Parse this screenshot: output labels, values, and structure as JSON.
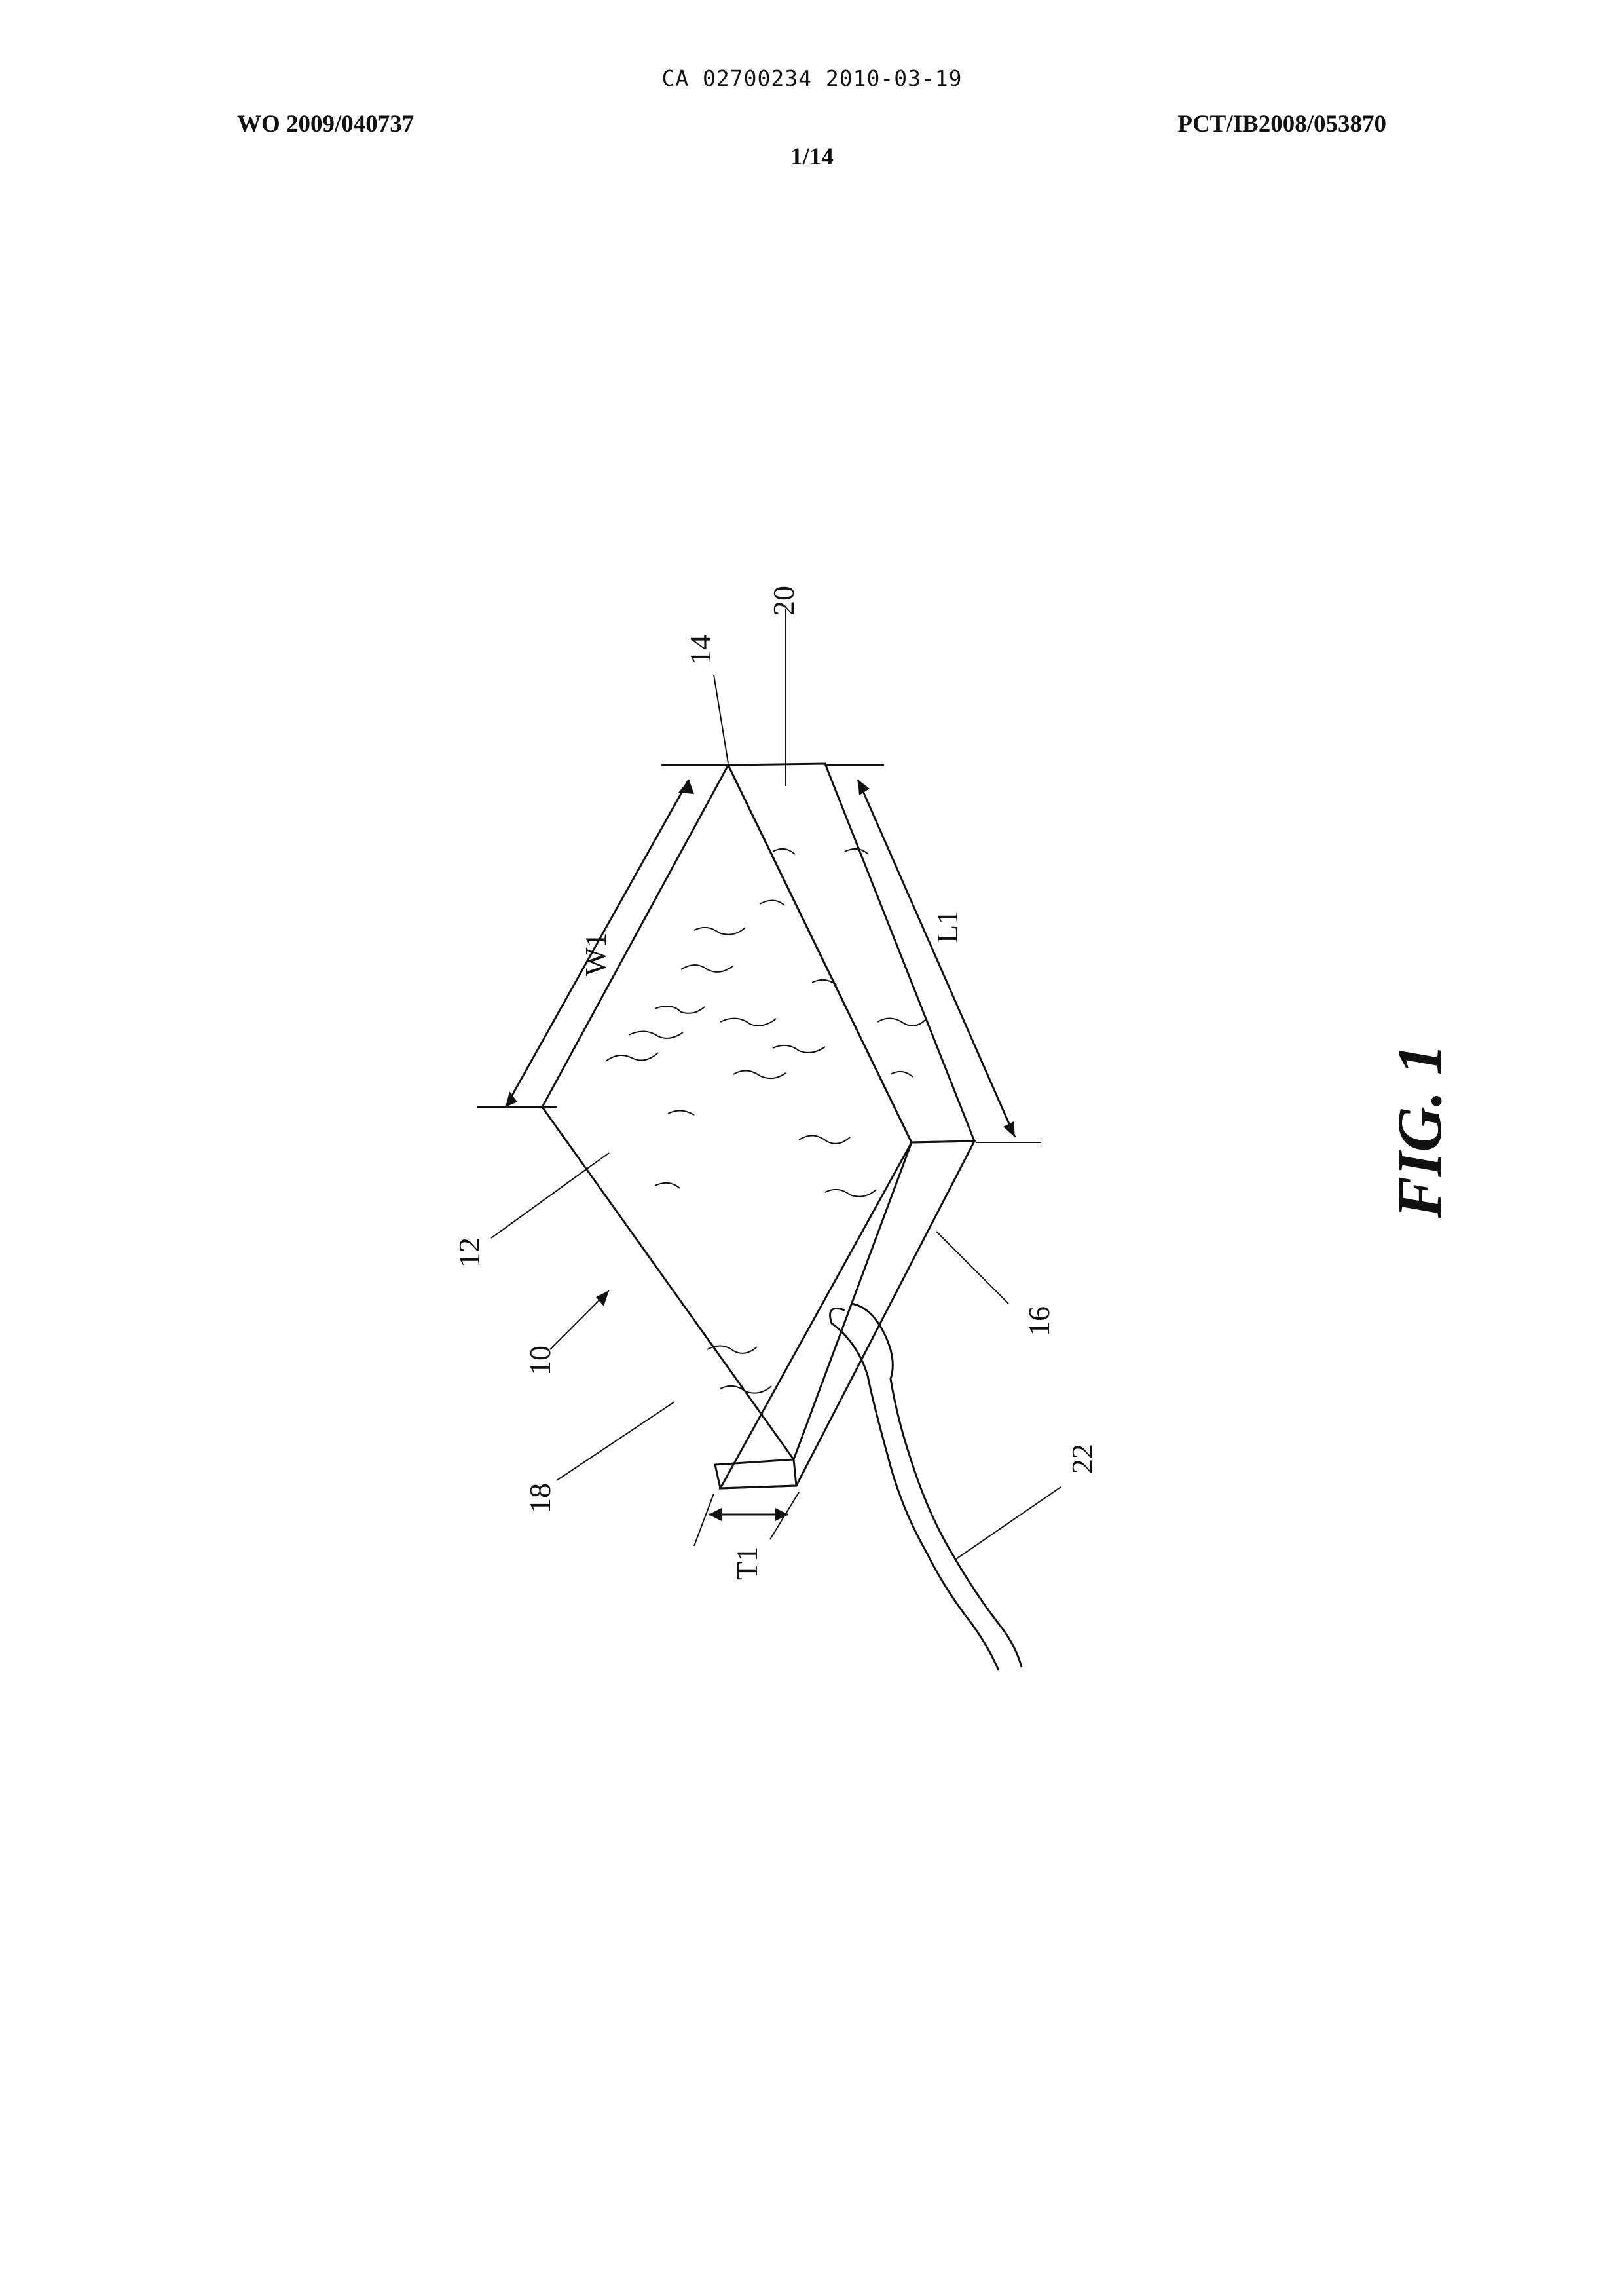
{
  "header": {
    "stamp": "CA 02700234 2010-03-19",
    "publication_number": "WO 2009/040737",
    "application_number": "PCT/IB2008/053870",
    "sheet": "1/14"
  },
  "figure": {
    "caption": "FIG. 1",
    "labels": {
      "ref_10": "10",
      "ref_12": "12",
      "ref_14": "14",
      "ref_16": "16",
      "ref_18": "18",
      "ref_20": "20",
      "ref_22": "22",
      "dim_w1": "W1",
      "dim_l1": "L1",
      "dim_t1": "T1"
    }
  }
}
